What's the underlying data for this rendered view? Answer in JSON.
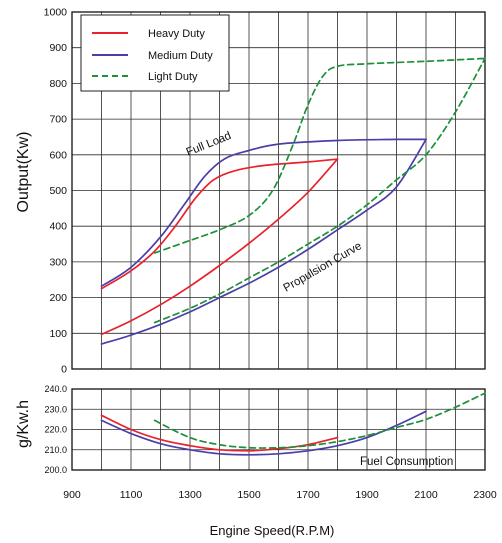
{
  "chart_data": [
    {
      "type": "line",
      "panel": "output",
      "ylabel": "Output(Kw)",
      "ylim": [
        0,
        1000
      ],
      "yticks": [
        0,
        100,
        200,
        300,
        400,
        500,
        600,
        700,
        800,
        900,
        1000
      ],
      "xlim": [
        900,
        2300
      ],
      "grid": true,
      "legend_position": "top-left",
      "annotations": [
        "Full Load",
        "Propulsion Curve"
      ],
      "series": [
        {
          "name": "Heavy Duty",
          "color": "#e8212b",
          "dash": "solid",
          "curve": "full-load",
          "points": [
            [
              1000,
              225
            ],
            [
              1100,
              275
            ],
            [
              1180,
              330
            ],
            [
              1250,
              400
            ],
            [
              1320,
              480
            ],
            [
              1380,
              530
            ],
            [
              1450,
              555
            ],
            [
              1550,
              570
            ],
            [
              1700,
              580
            ],
            [
              1800,
              588
            ]
          ]
        },
        {
          "name": "Heavy Duty",
          "color": "#e8212b",
          "dash": "solid",
          "curve": "propulsion",
          "points": [
            [
              1000,
              97
            ],
            [
              1100,
              135
            ],
            [
              1200,
              180
            ],
            [
              1300,
              232
            ],
            [
              1400,
              290
            ],
            [
              1500,
              352
            ],
            [
              1600,
              420
            ],
            [
              1700,
              495
            ],
            [
              1800,
              588
            ]
          ]
        },
        {
          "name": "Medium Duty",
          "color": "#4a3fa8",
          "dash": "solid",
          "curve": "full-load",
          "points": [
            [
              1000,
              232
            ],
            [
              1100,
              285
            ],
            [
              1200,
              370
            ],
            [
              1280,
              460
            ],
            [
              1350,
              540
            ],
            [
              1420,
              590
            ],
            [
              1500,
              612
            ],
            [
              1600,
              630
            ],
            [
              1800,
              640
            ],
            [
              2000,
              643
            ],
            [
              2100,
              643
            ]
          ]
        },
        {
          "name": "Medium Duty",
          "color": "#4a3fa8",
          "dash": "solid",
          "curve": "propulsion",
          "points": [
            [
              1000,
              70
            ],
            [
              1100,
              95
            ],
            [
              1200,
              125
            ],
            [
              1300,
              160
            ],
            [
              1400,
              200
            ],
            [
              1500,
              240
            ],
            [
              1600,
              285
            ],
            [
              1700,
              335
            ],
            [
              1800,
              390
            ],
            [
              1900,
              445
            ],
            [
              2000,
              510
            ],
            [
              2100,
              643
            ]
          ]
        },
        {
          "name": "Light Duty",
          "color": "#1e8f3a",
          "dash": "dashed",
          "curve": "full-load",
          "points": [
            [
              1180,
              325
            ],
            [
              1300,
              360
            ],
            [
              1400,
              390
            ],
            [
              1500,
              430
            ],
            [
              1580,
              500
            ],
            [
              1650,
              630
            ],
            [
              1700,
              740
            ],
            [
              1750,
              820
            ],
            [
              1800,
              848
            ],
            [
              1900,
              855
            ],
            [
              2100,
              862
            ],
            [
              2300,
              870
            ]
          ]
        },
        {
          "name": "Light Duty",
          "color": "#1e8f3a",
          "dash": "dashed",
          "curve": "propulsion",
          "points": [
            [
              1180,
              130
            ],
            [
              1300,
              170
            ],
            [
              1400,
              210
            ],
            [
              1500,
              255
            ],
            [
              1600,
              300
            ],
            [
              1700,
              350
            ],
            [
              1800,
              400
            ],
            [
              1900,
              460
            ],
            [
              2000,
              530
            ],
            [
              2100,
              600
            ],
            [
              2200,
              720
            ],
            [
              2300,
              870
            ]
          ]
        }
      ]
    },
    {
      "type": "line",
      "panel": "fuel",
      "ylabel": "g/Kw.h",
      "ylim": [
        200,
        240
      ],
      "yticks": [
        200.0,
        210.0,
        220.0,
        230.0,
        240.0
      ],
      "ytick_labels": [
        "200.0",
        "210.0",
        "220.0",
        "230.0",
        "240.0"
      ],
      "xlabel": "Engine Speed(R.P.M)",
      "xticks": [
        900,
        1100,
        1300,
        1500,
        1700,
        1900,
        2100,
        2300
      ],
      "grid": true,
      "annotations": [
        "Fuel Consumption"
      ],
      "series": [
        {
          "name": "Heavy Duty",
          "color": "#e8212b",
          "dash": "solid",
          "points": [
            [
              1000,
              227
            ],
            [
              1100,
              220
            ],
            [
              1200,
              215
            ],
            [
              1300,
              212
            ],
            [
              1400,
              210
            ],
            [
              1500,
              209.5
            ],
            [
              1600,
              210.5
            ],
            [
              1700,
              212.5
            ],
            [
              1800,
              216
            ]
          ]
        },
        {
          "name": "Medium Duty",
          "color": "#4a3fa8",
          "dash": "solid",
          "points": [
            [
              1000,
              224.5
            ],
            [
              1100,
              218
            ],
            [
              1200,
              213
            ],
            [
              1300,
              210
            ],
            [
              1400,
              208
            ],
            [
              1500,
              207.5
            ],
            [
              1600,
              208
            ],
            [
              1700,
              209.5
            ],
            [
              1800,
              212
            ],
            [
              1900,
              216
            ],
            [
              2000,
              222
            ],
            [
              2100,
              229
            ]
          ]
        },
        {
          "name": "Light Duty",
          "color": "#1e8f3a",
          "dash": "dashed",
          "points": [
            [
              1180,
              224.5
            ],
            [
              1300,
              216
            ],
            [
              1400,
              212.5
            ],
            [
              1500,
              211
            ],
            [
              1600,
              211
            ],
            [
              1700,
              212
            ],
            [
              1800,
              214
            ],
            [
              1900,
              217
            ],
            [
              2000,
              221
            ],
            [
              2100,
              225
            ],
            [
              2200,
              231
            ],
            [
              2300,
              238
            ]
          ]
        }
      ]
    }
  ]
}
